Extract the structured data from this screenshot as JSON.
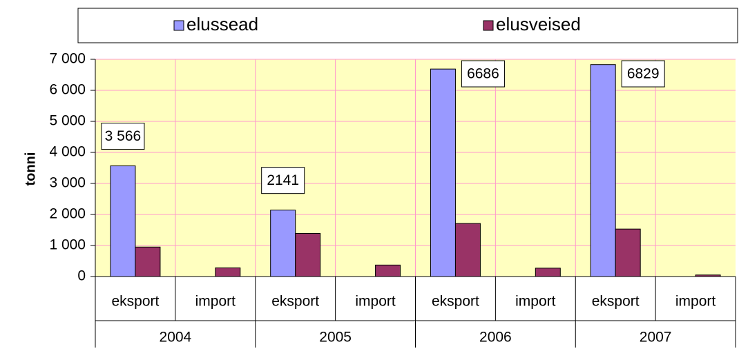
{
  "chart_data": {
    "type": "bar",
    "y_label": "tonni",
    "categories": [
      "eksport",
      "import",
      "eksport",
      "import",
      "eksport",
      "import",
      "eksport",
      "import"
    ],
    "groups": [
      "2004",
      "2005",
      "2006",
      "2007"
    ],
    "series": [
      {
        "name": "elussead",
        "color": "#9999ff",
        "values": [
          3566,
          0,
          2141,
          0,
          6686,
          0,
          6829,
          0
        ],
        "value_labels": [
          "3 566",
          null,
          "2141",
          null,
          "6686",
          null,
          "6829",
          null
        ]
      },
      {
        "name": "elusveised",
        "color": "#993366",
        "values": [
          950,
          280,
          1390,
          370,
          1710,
          270,
          1530,
          50
        ]
      }
    ],
    "ylim": [
      0,
      7000
    ],
    "yticks": [
      0,
      {
        "value": 1000,
        "label": "1 000"
      },
      {
        "value": 2000,
        "label": "2 000"
      },
      {
        "value": 3000,
        "label": "3 000"
      },
      {
        "value": 4000,
        "label": "4 000"
      },
      {
        "value": 5000,
        "label": "5 000"
      },
      {
        "value": 6000,
        "label": "6 000"
      },
      {
        "value": 7000,
        "label": "7 000"
      }
    ],
    "grid": true,
    "plot_background": "#ffffc0",
    "grid_color": "#ff99cc",
    "legend": "top"
  }
}
